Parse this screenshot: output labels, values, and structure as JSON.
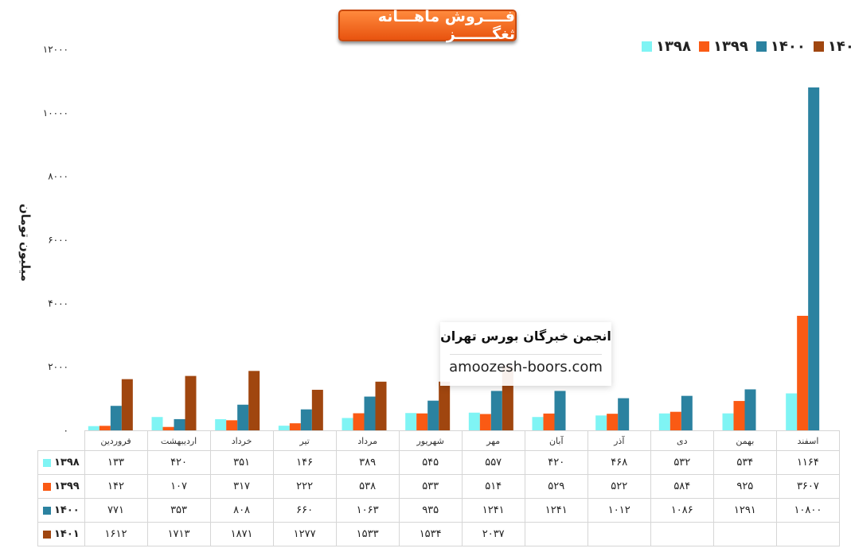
{
  "chart_data": {
    "type": "bar",
    "title": "فــــروش ماهـــانه ثغگـــــــز",
    "ylabel": "میلیون تومان",
    "ylim": [
      0,
      12000
    ],
    "yticks": [
      "۰",
      "۲۰۰۰",
      "۴۰۰۰",
      "۶۰۰۰",
      "۸۰۰۰",
      "۱۰۰۰۰",
      "۱۲۰۰۰"
    ],
    "ytick_values": [
      0,
      2000,
      4000,
      6000,
      8000,
      10000,
      12000
    ],
    "legend_position": "top-right",
    "grid": false,
    "categories": [
      "فروردین",
      "اردیبهشت",
      "خرداد",
      "تیر",
      "مرداد",
      "شهریور",
      "مهر",
      "آبان",
      "آذر",
      "دی",
      "بهمن",
      "اسفند"
    ],
    "series": [
      {
        "name": "۱۳۹۸",
        "color": "#7ff4f4",
        "values": [
          133,
          420,
          351,
          146,
          389,
          545,
          557,
          420,
          468,
          532,
          534,
          1164
        ],
        "labels": [
          "۱۳۳",
          "۴۲۰",
          "۳۵۱",
          "۱۴۶",
          "۳۸۹",
          "۵۴۵",
          "۵۵۷",
          "۴۲۰",
          "۴۶۸",
          "۵۳۲",
          "۵۳۴",
          "۱۱۶۴"
        ]
      },
      {
        "name": "۱۳۹۹",
        "color": "#fa5a14",
        "values": [
          142,
          107,
          317,
          222,
          538,
          533,
          514,
          529,
          522,
          584,
          925,
          3607
        ],
        "labels": [
          "۱۴۲",
          "۱۰۷",
          "۳۱۷",
          "۲۲۲",
          "۵۳۸",
          "۵۳۳",
          "۵۱۴",
          "۵۲۹",
          "۵۲۲",
          "۵۸۴",
          "۹۲۵",
          "۳۶۰۷"
        ]
      },
      {
        "name": "۱۴۰۰",
        "color": "#2b82a0",
        "values": [
          771,
          353,
          808,
          660,
          1063,
          935,
          1241,
          1241,
          1012,
          1086,
          1291,
          10800
        ],
        "labels": [
          "۷۷۱",
          "۳۵۳",
          "۸۰۸",
          "۶۶۰",
          "۱۰۶۳",
          "۹۳۵",
          "۱۲۴۱",
          "۱۲۴۱",
          "۱۰۱۲",
          "۱۰۸۶",
          "۱۲۹۱",
          "۱۰۸۰۰"
        ]
      },
      {
        "name": "۱۴۰۱",
        "color": "#a0460f",
        "values": [
          1612,
          1713,
          1871,
          1277,
          1533,
          1534,
          2037,
          null,
          null,
          null,
          null,
          null
        ],
        "labels": [
          "۱۶۱۲",
          "۱۷۱۳",
          "۱۸۷۱",
          "۱۲۷۷",
          "۱۵۳۳",
          "۱۵۳۴",
          "۲۰۳۷",
          "",
          "",
          "",
          "",
          ""
        ]
      }
    ]
  },
  "watermark": {
    "title": "انجمن خبرگان بورس تهران",
    "url": "amoozesh-boors.com"
  }
}
